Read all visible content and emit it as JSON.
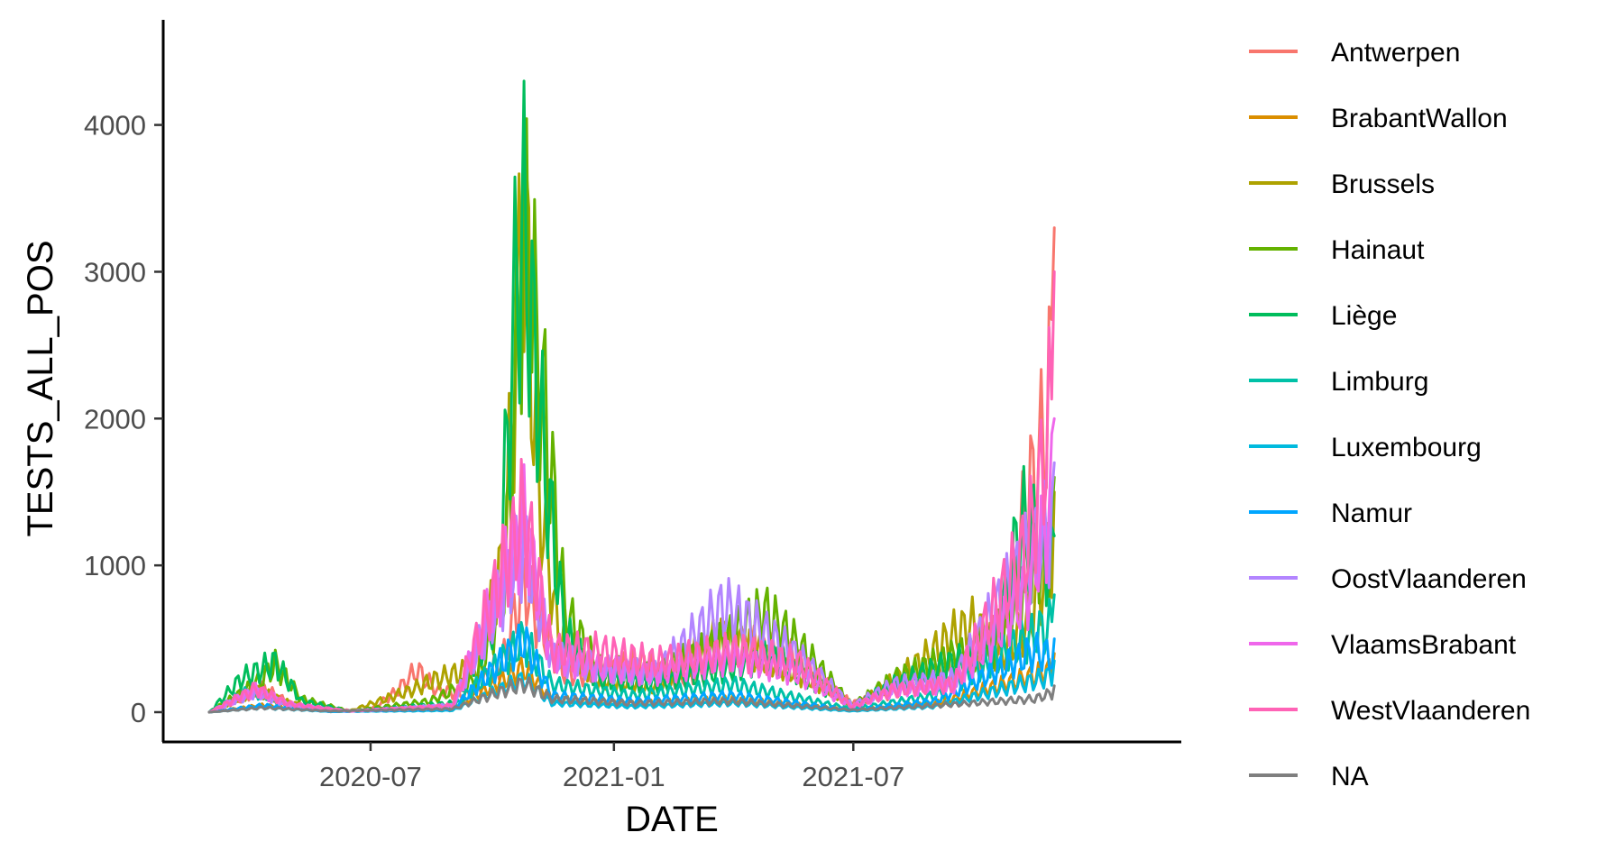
{
  "chart_data": {
    "type": "line",
    "title": "",
    "xlabel": "DATE",
    "ylabel": "TESTS_ALL_POS",
    "x_range": [
      "2020-03-01",
      "2021-11-30"
    ],
    "ylim": [
      0,
      4500
    ],
    "x_ticks": [
      {
        "date": "2020-07-01",
        "label": "2020-07"
      },
      {
        "date": "2021-01-01",
        "label": "2021-01"
      },
      {
        "date": "2021-07-01",
        "label": "2021-07"
      }
    ],
    "y_ticks": [
      {
        "value": 0,
        "label": "0"
      },
      {
        "value": 1000,
        "label": "1000"
      },
      {
        "value": 2000,
        "label": "2000"
      },
      {
        "value": 3000,
        "label": "3000"
      },
      {
        "value": 4000,
        "label": "4000"
      }
    ],
    "grid": false,
    "legend_position": "right",
    "series": [
      {
        "name": "Antwerpen",
        "color": "#F8766D",
        "points": [
          [
            "2020-03-01",
            0
          ],
          [
            "2020-03-25",
            120
          ],
          [
            "2020-04-10",
            220
          ],
          [
            "2020-05-01",
            80
          ],
          [
            "2020-06-01",
            15
          ],
          [
            "2020-07-01",
            20
          ],
          [
            "2020-07-20",
            180
          ],
          [
            "2020-08-05",
            380
          ],
          [
            "2020-08-20",
            200
          ],
          [
            "2020-09-15",
            150
          ],
          [
            "2020-10-10",
            500
          ],
          [
            "2020-10-25",
            1200
          ],
          [
            "2020-11-05",
            800
          ],
          [
            "2020-11-25",
            350
          ],
          [
            "2020-12-20",
            350
          ],
          [
            "2021-01-20",
            450
          ],
          [
            "2021-02-20",
            300
          ],
          [
            "2021-03-25",
            500
          ],
          [
            "2021-04-15",
            600
          ],
          [
            "2021-05-15",
            500
          ],
          [
            "2021-06-10",
            250
          ],
          [
            "2021-06-30",
            80
          ],
          [
            "2021-07-25",
            150
          ],
          [
            "2021-08-25",
            300
          ],
          [
            "2021-10-01",
            400
          ],
          [
            "2021-10-25",
            900
          ],
          [
            "2021-11-10",
            1900
          ],
          [
            "2021-11-20",
            2350
          ],
          [
            "2021-11-30",
            3300
          ]
        ]
      },
      {
        "name": "BrabantWallon",
        "color": "#DB8E00",
        "points": [
          [
            "2020-03-01",
            0
          ],
          [
            "2020-04-10",
            60
          ],
          [
            "2020-06-01",
            5
          ],
          [
            "2020-09-01",
            30
          ],
          [
            "2020-10-25",
            400
          ],
          [
            "2020-11-15",
            120
          ],
          [
            "2021-01-15",
            80
          ],
          [
            "2021-04-01",
            120
          ],
          [
            "2021-06-30",
            20
          ],
          [
            "2021-09-01",
            80
          ],
          [
            "2021-11-20",
            350
          ],
          [
            "2021-11-30",
            400
          ]
        ]
      },
      {
        "name": "Brussels",
        "color": "#AEA200",
        "points": [
          [
            "2020-03-01",
            0
          ],
          [
            "2020-04-05",
            200
          ],
          [
            "2020-05-01",
            80
          ],
          [
            "2020-06-15",
            10
          ],
          [
            "2020-08-01",
            200
          ],
          [
            "2020-08-20",
            300
          ],
          [
            "2020-09-20",
            400
          ],
          [
            "2020-10-10",
            1400
          ],
          [
            "2020-10-25",
            4500
          ],
          [
            "2020-11-05",
            2000
          ],
          [
            "2020-11-20",
            700
          ],
          [
            "2020-12-20",
            300
          ],
          [
            "2021-02-01",
            250
          ],
          [
            "2021-03-25",
            700
          ],
          [
            "2021-04-25",
            500
          ],
          [
            "2021-06-15",
            200
          ],
          [
            "2021-07-01",
            50
          ],
          [
            "2021-08-15",
            400
          ],
          [
            "2021-09-15",
            700
          ],
          [
            "2021-10-01",
            800
          ],
          [
            "2021-10-20",
            500
          ],
          [
            "2021-11-10",
            800
          ],
          [
            "2021-11-30",
            1500
          ]
        ]
      },
      {
        "name": "Hainaut",
        "color": "#64B200",
        "points": [
          [
            "2020-03-01",
            0
          ],
          [
            "2020-04-05",
            250
          ],
          [
            "2020-04-20",
            430
          ],
          [
            "2020-05-10",
            120
          ],
          [
            "2020-06-15",
            10
          ],
          [
            "2020-08-15",
            100
          ],
          [
            "2020-09-20",
            300
          ],
          [
            "2020-10-10",
            1100
          ],
          [
            "2020-10-25",
            4400
          ],
          [
            "2020-11-10",
            2700
          ],
          [
            "2020-11-25",
            900
          ],
          [
            "2020-12-20",
            400
          ],
          [
            "2021-02-01",
            350
          ],
          [
            "2021-03-20",
            600
          ],
          [
            "2021-04-25",
            900
          ],
          [
            "2021-05-25",
            550
          ],
          [
            "2021-06-30",
            60
          ],
          [
            "2021-08-01",
            300
          ],
          [
            "2021-09-15",
            500
          ],
          [
            "2021-10-15",
            600
          ],
          [
            "2021-11-05",
            1200
          ],
          [
            "2021-11-30",
            1600
          ]
        ]
      },
      {
        "name": "Liège",
        "color": "#00BD5C",
        "points": [
          [
            "2020-03-01",
            0
          ],
          [
            "2020-03-25",
            300
          ],
          [
            "2020-04-20",
            450
          ],
          [
            "2020-05-10",
            100
          ],
          [
            "2020-06-15",
            10
          ],
          [
            "2020-09-01",
            80
          ],
          [
            "2020-10-05",
            900
          ],
          [
            "2020-10-20",
            4050
          ],
          [
            "2020-10-25",
            4300
          ],
          [
            "2020-11-10",
            2200
          ],
          [
            "2020-11-25",
            700
          ],
          [
            "2020-12-20",
            300
          ],
          [
            "2021-02-01",
            250
          ],
          [
            "2021-04-01",
            400
          ],
          [
            "2021-05-01",
            500
          ],
          [
            "2021-06-30",
            50
          ],
          [
            "2021-08-01",
            250
          ],
          [
            "2021-09-15",
            450
          ],
          [
            "2021-10-15",
            550
          ],
          [
            "2021-11-05",
            1700
          ],
          [
            "2021-11-20",
            1500
          ],
          [
            "2021-11-30",
            1200
          ]
        ]
      },
      {
        "name": "Limburg",
        "color": "#00C1A7",
        "points": [
          [
            "2020-03-01",
            0
          ],
          [
            "2020-04-01",
            200
          ],
          [
            "2020-05-01",
            60
          ],
          [
            "2020-06-15",
            10
          ],
          [
            "2020-09-01",
            40
          ],
          [
            "2020-10-25",
            650
          ],
          [
            "2020-11-15",
            250
          ],
          [
            "2021-01-15",
            150
          ],
          [
            "2021-04-01",
            250
          ],
          [
            "2021-06-30",
            30
          ],
          [
            "2021-09-01",
            150
          ],
          [
            "2021-11-15",
            700
          ],
          [
            "2021-11-30",
            800
          ]
        ]
      },
      {
        "name": "Luxembourg",
        "color": "#00BADE",
        "points": [
          [
            "2020-03-01",
            0
          ],
          [
            "2020-04-10",
            40
          ],
          [
            "2020-06-01",
            5
          ],
          [
            "2020-09-01",
            15
          ],
          [
            "2020-10-25",
            300
          ],
          [
            "2020-11-15",
            80
          ],
          [
            "2021-01-15",
            50
          ],
          [
            "2021-04-01",
            80
          ],
          [
            "2021-06-30",
            10
          ],
          [
            "2021-09-01",
            50
          ],
          [
            "2021-11-20",
            300
          ],
          [
            "2021-11-30",
            350
          ]
        ]
      },
      {
        "name": "Namur",
        "color": "#00A6FF",
        "points": [
          [
            "2020-03-01",
            0
          ],
          [
            "2020-04-10",
            60
          ],
          [
            "2020-06-01",
            5
          ],
          [
            "2020-09-01",
            25
          ],
          [
            "2020-10-25",
            650
          ],
          [
            "2020-11-15",
            150
          ],
          [
            "2021-01-15",
            100
          ],
          [
            "2021-04-01",
            150
          ],
          [
            "2021-06-30",
            20
          ],
          [
            "2021-09-01",
            100
          ],
          [
            "2021-11-15",
            550
          ],
          [
            "2021-11-30",
            500
          ]
        ]
      },
      {
        "name": "OostVlaanderen",
        "color": "#B385FF",
        "points": [
          [
            "2020-03-01",
            0
          ],
          [
            "2020-04-05",
            180
          ],
          [
            "2020-05-01",
            60
          ],
          [
            "2020-06-15",
            10
          ],
          [
            "2020-09-01",
            60
          ],
          [
            "2020-10-25",
            1500
          ],
          [
            "2020-11-15",
            500
          ],
          [
            "2020-12-20",
            400
          ],
          [
            "2021-02-01",
            350
          ],
          [
            "2021-03-25",
            950
          ],
          [
            "2021-04-15",
            800
          ],
          [
            "2021-05-20",
            500
          ],
          [
            "2021-06-30",
            60
          ],
          [
            "2021-08-01",
            250
          ],
          [
            "2021-09-15",
            300
          ],
          [
            "2021-11-10",
            1400
          ],
          [
            "2021-11-30",
            1700
          ]
        ]
      },
      {
        "name": "VlaamsBrabant",
        "color": "#EF67EB",
        "points": [
          [
            "2020-03-01",
            0
          ],
          [
            "2020-04-05",
            200
          ],
          [
            "2020-05-01",
            70
          ],
          [
            "2020-06-15",
            10
          ],
          [
            "2020-09-01",
            50
          ],
          [
            "2020-10-25",
            1700
          ],
          [
            "2020-11-15",
            500
          ],
          [
            "2020-12-20",
            400
          ],
          [
            "2021-02-01",
            350
          ],
          [
            "2021-04-01",
            500
          ],
          [
            "2021-05-20",
            350
          ],
          [
            "2021-06-30",
            50
          ],
          [
            "2021-08-01",
            200
          ],
          [
            "2021-09-15",
            250
          ],
          [
            "2021-11-10",
            1100
          ],
          [
            "2021-11-30",
            2000
          ]
        ]
      },
      {
        "name": "WestVlaanderen",
        "color": "#FF63B6",
        "points": [
          [
            "2020-03-01",
            0
          ],
          [
            "2020-04-05",
            210
          ],
          [
            "2020-05-01",
            70
          ],
          [
            "2020-06-15",
            10
          ],
          [
            "2020-09-01",
            60
          ],
          [
            "2020-10-25",
            1800
          ],
          [
            "2020-11-15",
            550
          ],
          [
            "2020-12-20",
            550
          ],
          [
            "2021-02-01",
            450
          ],
          [
            "2021-04-01",
            550
          ],
          [
            "2021-05-20",
            450
          ],
          [
            "2021-06-30",
            50
          ],
          [
            "2021-08-01",
            200
          ],
          [
            "2021-09-15",
            250
          ],
          [
            "2021-11-10",
            1500
          ],
          [
            "2021-11-20",
            2100
          ],
          [
            "2021-11-30",
            3000
          ]
        ]
      },
      {
        "name": "NA",
        "color": "#7F7F7F",
        "points": [
          [
            "2020-03-01",
            0
          ],
          [
            "2020-04-10",
            40
          ],
          [
            "2020-06-01",
            10
          ],
          [
            "2020-09-01",
            30
          ],
          [
            "2020-10-25",
            260
          ],
          [
            "2020-11-15",
            120
          ],
          [
            "2021-01-15",
            80
          ],
          [
            "2021-04-01",
            100
          ],
          [
            "2021-06-30",
            20
          ],
          [
            "2021-09-01",
            60
          ],
          [
            "2021-11-15",
            120
          ],
          [
            "2021-11-30",
            180
          ]
        ]
      }
    ]
  }
}
